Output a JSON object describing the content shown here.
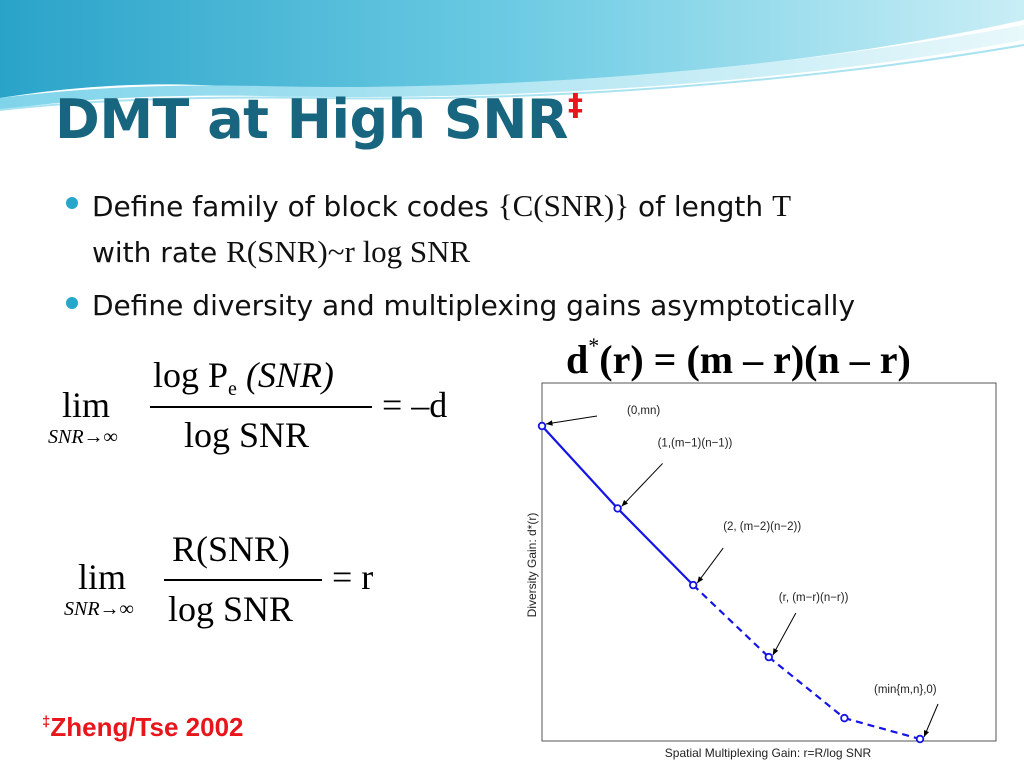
{
  "slide": {
    "title": "DMT at High SNR",
    "title_mark": "‡",
    "bullets": [
      {
        "prefix": "Define family of block codes",
        "math1": "{C(SNR)}",
        "middle": "of length",
        "math2": "T",
        "line2_prefix": "with rate",
        "math3": "R(SNR)~r log SNR"
      },
      {
        "text": "Define diversity and multiplexing gains asymptotically"
      }
    ],
    "formula_dstar": {
      "left": "d",
      "star": "*",
      "rest": "(r) = (m – r)(n – r)"
    },
    "limit1": {
      "lim": "lim",
      "sub": "SNR→∞",
      "num_log": "log",
      "num_P": "P",
      "num_sub": "e",
      "num_arg": "(SNR)",
      "den": "log SNR",
      "rhs": "= –d"
    },
    "limit2": {
      "lim": "lim",
      "sub": "SNR→∞",
      "num": "R(SNR)",
      "den": "log SNR",
      "rhs": "= r"
    },
    "footnote": {
      "mark": "‡",
      "text": "Zheng/Tse 2002"
    }
  },
  "chart_data": {
    "type": "line",
    "xlabel": "Spatial Multiplexing Gain:   r=R/log SNR",
    "ylabel": "Diversity Gain:   d*(r)",
    "points": [
      {
        "x": 0,
        "y": 6
      },
      {
        "x": 1,
        "y": 4.42
      },
      {
        "x": 2,
        "y": 2.95
      },
      {
        "x": 3,
        "y": 1.57
      },
      {
        "x": 4,
        "y": 0.4
      },
      {
        "x": 5,
        "y": 0
      }
    ],
    "solid_segments": [
      [
        0,
        1
      ],
      [
        1,
        2
      ]
    ],
    "dashed_segments": [
      [
        2,
        3
      ],
      [
        3,
        4
      ],
      [
        4,
        5
      ]
    ],
    "annotations": [
      {
        "label": "(0,mn)",
        "point": 0
      },
      {
        "label": "(1,(m−1)(n−1))",
        "point": 1
      },
      {
        "label": "(2, (m−2)(n−2))",
        "point": 2
      },
      {
        "label": "(r, (m−r)(n−r))",
        "point": 3
      },
      {
        "label": "(min{m,n},0)",
        "point": 5
      }
    ],
    "xlim": [
      0,
      5
    ],
    "ylim": [
      0,
      6
    ],
    "line_color": "#1414e6",
    "grid": false
  },
  "colors": {
    "title": "#17657f",
    "accent_red": "#e8151b",
    "bullet": "#26a7c9"
  }
}
